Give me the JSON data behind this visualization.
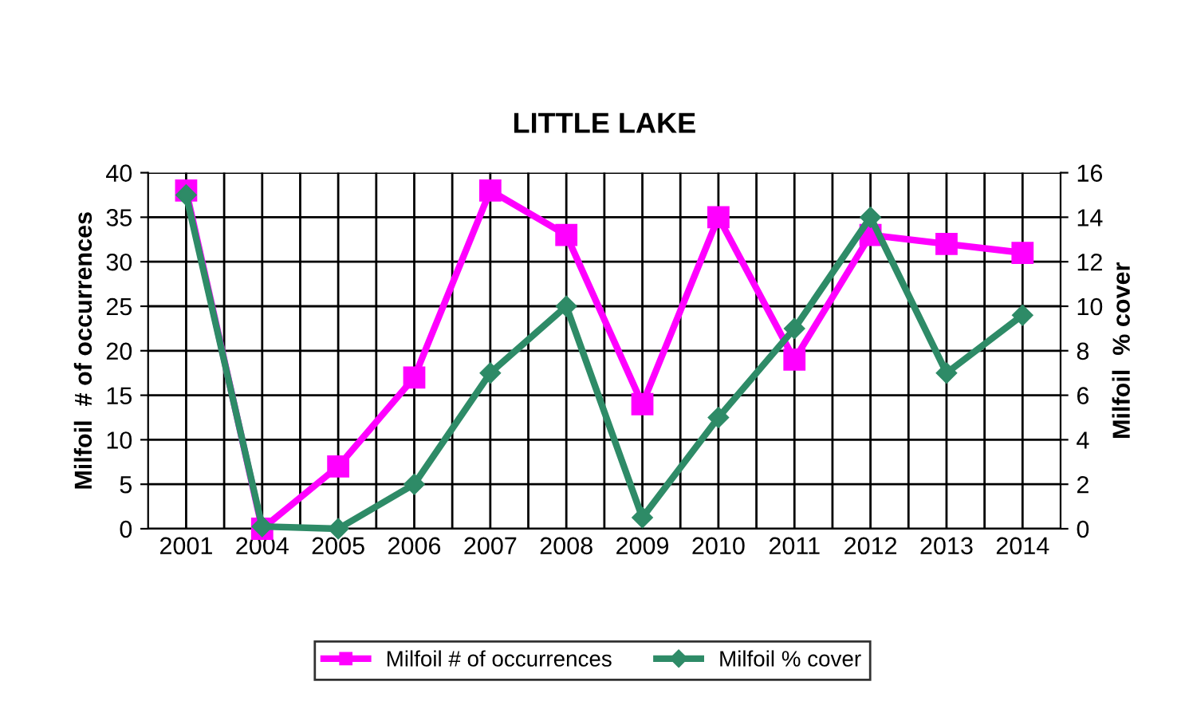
{
  "chart_data": {
    "type": "line",
    "title": "LITTLE LAKE",
    "ylabel": "Milfoil  # of occurrences",
    "y2label": "Milfoil  % cover",
    "categories": [
      "2001",
      "2004",
      "2005",
      "2006",
      "2007",
      "2008",
      "2009",
      "2010",
      "2011",
      "2012",
      "2013",
      "2014"
    ],
    "series": [
      {
        "name": "Milfoil # of occurrences",
        "color": "#ff00ff",
        "marker": "square",
        "values": [
          38,
          0,
          7,
          17,
          38,
          33,
          14,
          35,
          19,
          33,
          32,
          31
        ]
      },
      {
        "name": "Milfoil % cover",
        "color": "#2e8b67",
        "marker": "diamond",
        "axis": "y2",
        "values": [
          15,
          0.1,
          0,
          2,
          7,
          10,
          0.5,
          5,
          9,
          14,
          7,
          9.6
        ]
      }
    ],
    "ylim": [
      0,
      40
    ],
    "yticks": [
      0,
      5,
      10,
      15,
      20,
      25,
      30,
      35,
      40
    ],
    "y2lim": [
      0,
      16
    ],
    "y2ticks": [
      0,
      2,
      4,
      6,
      8,
      10,
      12,
      14,
      16
    ],
    "grid": true,
    "legend": "bottom",
    "line_style": "solid"
  }
}
